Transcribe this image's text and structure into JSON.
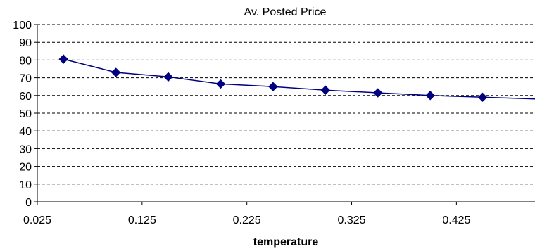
{
  "chart_data": {
    "type": "line",
    "title": "Av. Posted Price",
    "xlabel": "temperature",
    "ylabel": "",
    "xlim": [
      0.025,
      0.5
    ],
    "ylim": [
      0,
      100
    ],
    "x_ticks": [
      "0.025",
      "0.125",
      "0.225",
      "0.325",
      "0.425"
    ],
    "y_ticks": [
      "0",
      "10",
      "20",
      "30",
      "40",
      "50",
      "60",
      "70",
      "80",
      "90",
      "100"
    ],
    "grid": "horizontal dashed",
    "legend": "none",
    "series": [
      {
        "color": "#000080",
        "marker": "diamond",
        "points": [
          {
            "x": 0.05,
            "y": 80.5
          },
          {
            "x": 0.1,
            "y": 73.0
          },
          {
            "x": 0.15,
            "y": 70.5
          },
          {
            "x": 0.2,
            "y": 66.5
          },
          {
            "x": 0.25,
            "y": 65.0
          },
          {
            "x": 0.3,
            "y": 63.0
          },
          {
            "x": 0.35,
            "y": 61.5
          },
          {
            "x": 0.4,
            "y": 60.0
          },
          {
            "x": 0.45,
            "y": 59.0
          }
        ],
        "line_end": {
          "x": 0.5,
          "y": 58.0
        }
      }
    ]
  }
}
